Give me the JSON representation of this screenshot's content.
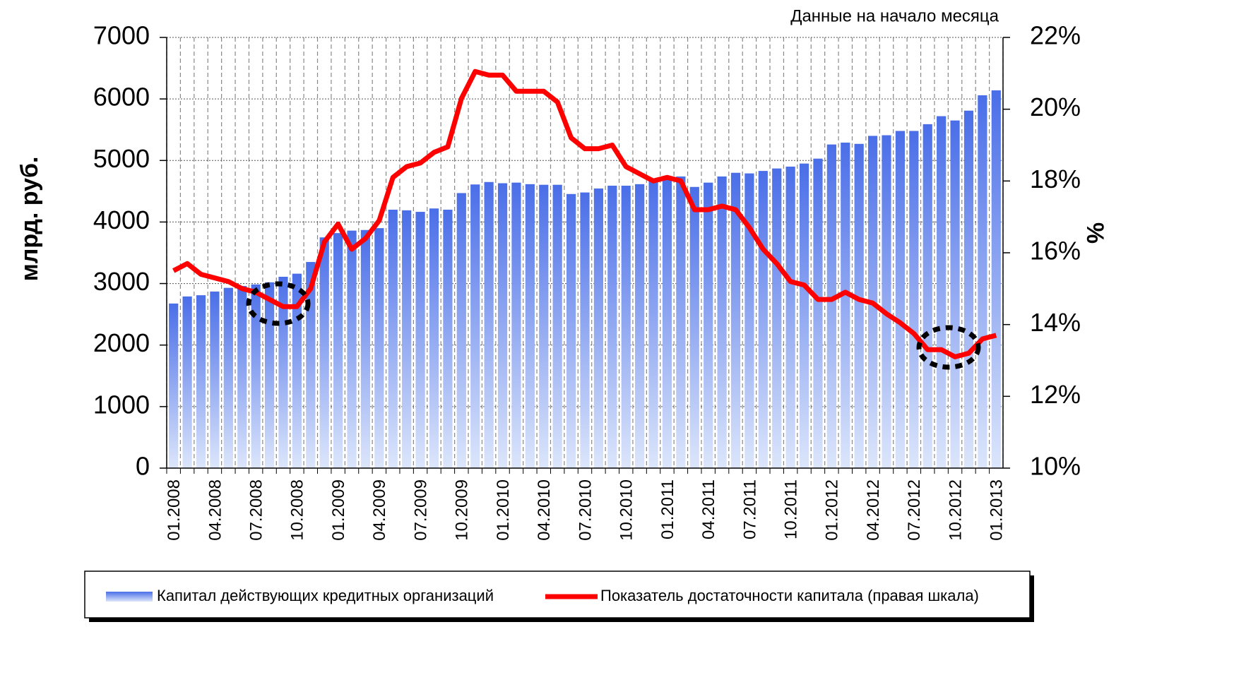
{
  "chart_data": {
    "type": "bar_line",
    "note": "Данные на начало месяца",
    "ylabel": "млрд. руб.",
    "y2label": "%",
    "categories": [
      "01.2008",
      null,
      null,
      "04.2008",
      null,
      null,
      "07.2008",
      null,
      null,
      "10.2008",
      null,
      null,
      "01.2009",
      null,
      null,
      "04.2009",
      null,
      null,
      "07.2009",
      null,
      null,
      "10.2009",
      null,
      null,
      "01.2010",
      null,
      null,
      "04.2010",
      null,
      null,
      "07.2010",
      null,
      null,
      "10.2010",
      null,
      null,
      "01.2011",
      null,
      null,
      "04.2011",
      null,
      null,
      "07.2011",
      null,
      null,
      "10.2011",
      null,
      null,
      "01.2012",
      null,
      null,
      "04.2012",
      null,
      null,
      "07.2012",
      null,
      null,
      "10.2012",
      null,
      null,
      "01.2013"
    ],
    "series": [
      {
        "name": "Капитал действующих кредитных организаций",
        "type": "bar",
        "color": "#4a6ee8",
        "values": [
          2675,
          2790,
          2810,
          2870,
          2930,
          2960,
          2985,
          3020,
          3110,
          3160,
          3350,
          3750,
          3820,
          3860,
          3870,
          3900,
          4200,
          4190,
          4165,
          4220,
          4200,
          4470,
          4610,
          4650,
          4630,
          4640,
          4615,
          4605,
          4605,
          4455,
          4480,
          4545,
          4590,
          4590,
          4615,
          4660,
          4710,
          4740,
          4570,
          4640,
          4740,
          4800,
          4790,
          4830,
          4870,
          4900,
          4950,
          5030,
          5260,
          5290,
          5270,
          5400,
          5410,
          5480,
          5480,
          5590,
          5720,
          5650,
          5810,
          6060,
          6140
        ]
      },
      {
        "name": "Показатель достаточности капитала (правая шкала)",
        "type": "line",
        "axis": "y2",
        "color": "#ff0000",
        "values": [
          15.5,
          15.7,
          15.4,
          15.3,
          15.2,
          15.0,
          14.9,
          14.7,
          14.5,
          14.5,
          15.0,
          16.3,
          16.8,
          16.1,
          16.4,
          16.9,
          18.1,
          18.4,
          18.5,
          18.8,
          18.95,
          20.3,
          21.05,
          20.95,
          20.95,
          20.5,
          20.5,
          20.5,
          20.2,
          19.2,
          18.9,
          18.9,
          19.0,
          18.4,
          18.2,
          18.0,
          18.1,
          18.0,
          17.2,
          17.2,
          17.3,
          17.2,
          16.7,
          16.1,
          15.7,
          15.2,
          15.1,
          14.7,
          14.7,
          14.9,
          14.7,
          14.6,
          14.3,
          14.05,
          13.75,
          13.3,
          13.3,
          13.1,
          13.2,
          13.6,
          13.7
        ]
      }
    ],
    "ylim": [
      0,
      7000
    ],
    "yticks": [
      0,
      1000,
      2000,
      3000,
      4000,
      5000,
      6000,
      7000
    ],
    "y2lim": [
      10,
      22
    ],
    "y2ticks": [
      {
        "value": 10,
        "label": "10%"
      },
      {
        "value": 12,
        "label": "12%"
      },
      {
        "value": 14,
        "label": "14%"
      },
      {
        "value": 16,
        "label": "16%"
      },
      {
        "value": 18,
        "label": "18%"
      },
      {
        "value": 20,
        "label": "20%"
      },
      {
        "value": 22,
        "label": "22%"
      }
    ],
    "grid": true,
    "legend": "bottom"
  }
}
